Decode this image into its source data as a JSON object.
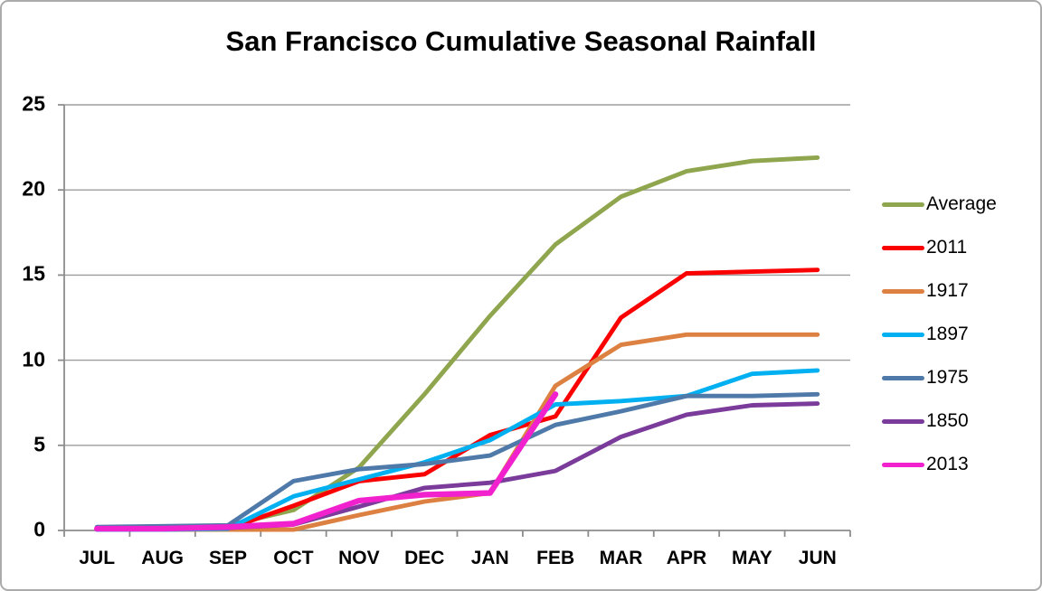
{
  "chart_data": {
    "type": "line",
    "title": "San Francisco Cumulative Seasonal Rainfall",
    "categories": [
      "JUL",
      "AUG",
      "SEP",
      "OCT",
      "NOV",
      "DEC",
      "JAN",
      "FEB",
      "MAR",
      "APR",
      "MAY",
      "JUN"
    ],
    "y_ticks": [
      0,
      5,
      10,
      15,
      20,
      25
    ],
    "ylim": [
      0,
      25
    ],
    "xlabel": "",
    "ylabel": "",
    "grid": "horizontal",
    "legend_position": "right",
    "axis_color": "#8c8c8c",
    "grid_color": "#9d9d9d",
    "series": [
      {
        "name": "Average",
        "color": "#8fa64f",
        "values": [
          0.1,
          0.15,
          0.3,
          1.2,
          3.7,
          8.0,
          12.6,
          16.8,
          19.6,
          21.1,
          21.7,
          21.9
        ]
      },
      {
        "name": "2011",
        "color": "#fb0000",
        "values": [
          0.1,
          0.1,
          0.1,
          1.45,
          2.9,
          3.3,
          5.6,
          6.7,
          12.5,
          15.1,
          15.2,
          15.3
        ]
      },
      {
        "name": "1917",
        "color": "#dd8142",
        "values": [
          0.05,
          0.05,
          0.05,
          0.05,
          0.9,
          1.7,
          2.2,
          8.5,
          10.9,
          11.5,
          11.5,
          11.5
        ]
      },
      {
        "name": "1897",
        "color": "#00b0f0",
        "values": [
          0.05,
          0.05,
          0.1,
          2.0,
          3.0,
          4.0,
          5.3,
          7.4,
          7.6,
          7.9,
          9.2,
          9.4
        ]
      },
      {
        "name": "1975",
        "color": "#4f79a8",
        "values": [
          0.2,
          0.25,
          0.3,
          2.9,
          3.6,
          3.9,
          4.4,
          6.2,
          7.0,
          7.9,
          7.9,
          8.0
        ]
      },
      {
        "name": "1850",
        "color": "#7a3b9b",
        "values": [
          0.1,
          0.1,
          0.15,
          0.35,
          1.4,
          2.5,
          2.8,
          3.5,
          5.5,
          6.8,
          7.35,
          7.45
        ]
      },
      {
        "name": "2013",
        "color": "#f122ce",
        "values": [
          0.1,
          0.1,
          0.2,
          0.4,
          1.75,
          2.1,
          2.2,
          8.0,
          null,
          null,
          null,
          null
        ]
      }
    ]
  }
}
